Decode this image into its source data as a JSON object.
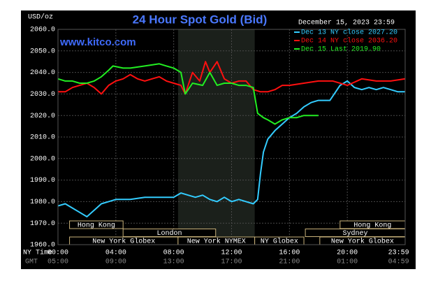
{
  "chart_data": {
    "type": "line",
    "title": "24 Hour Spot Gold (Bid)",
    "unit_label": "USD/oz",
    "timestamp": "December 15, 2023 23:59",
    "website": "www.kitco.com",
    "x_label": "NY Time",
    "x2_label": "GMT",
    "xlim": [
      0,
      24
    ],
    "ylim": [
      1960,
      2060
    ],
    "xticks": [
      {
        "value": 0,
        "label": "00:00"
      },
      {
        "value": 4,
        "label": "04:00"
      },
      {
        "value": 8,
        "label": "08:00"
      },
      {
        "value": 12,
        "label": "12:00"
      },
      {
        "value": 16,
        "label": "16:00"
      },
      {
        "value": 20,
        "label": "20:00"
      },
      {
        "value": 23.98,
        "label": "23:59"
      }
    ],
    "gmt_ticks": [
      "05:00",
      "09:00",
      "13:00",
      "17:00",
      "21:00",
      "01:00",
      "04:59"
    ],
    "yticks": [
      {
        "value": 1960,
        "label": "1960.0"
      },
      {
        "value": 1970,
        "label": "1970.0"
      },
      {
        "value": 1980,
        "label": "1980.0"
      },
      {
        "value": 1990,
        "label": "1990.0"
      },
      {
        "value": 2000,
        "label": "2000.0"
      },
      {
        "value": 2010,
        "label": "2010.0"
      },
      {
        "value": 2020,
        "label": "2020.0"
      },
      {
        "value": 2030,
        "label": "2030.0"
      },
      {
        "value": 2040,
        "label": "2040.0"
      },
      {
        "value": 2050,
        "label": "2050.0"
      },
      {
        "value": 2060,
        "label": "2060.0"
      }
    ],
    "grid": true,
    "shaded_range": [
      8.3,
      13.6
    ],
    "sessions": [
      [
        {
          "label": "Hong Kong",
          "start": 0.8,
          "end": 4.5
        },
        {
          "label": "Hong Kong",
          "start": 19.5,
          "end": 24
        }
      ],
      [
        {
          "label": "London",
          "start": 4.5,
          "end": 10.9
        },
        {
          "label": "Sydney",
          "start": 17.1,
          "end": 24
        }
      ],
      [
        {
          "label": "New York Globex",
          "start": 0.8,
          "end": 8.3
        },
        {
          "label": "New York NYMEX",
          "start": 8.3,
          "end": 13.6
        },
        {
          "label": "NY Globex",
          "start": 13.6,
          "end": 17.0
        },
        {
          "label": "New York Globex",
          "start": 18.1,
          "end": 24
        }
      ]
    ],
    "series": [
      {
        "name": "Dec 13 NY close 2027.20",
        "color": "#33ccff",
        "x": [
          0,
          0.5,
          1,
          1.5,
          2,
          2.5,
          3,
          3.5,
          4,
          5,
          6,
          7,
          8,
          8.5,
          9,
          9.5,
          10,
          10.5,
          11,
          11.5,
          12,
          12.5,
          13,
          13.5,
          13.8,
          14,
          14.2,
          14.5,
          15,
          15.5,
          16,
          16.5,
          17,
          17.5,
          18,
          18.5,
          18.8,
          19.2,
          19.5,
          20,
          20.5,
          21,
          21.5,
          22,
          22.5,
          23,
          23.5,
          24
        ],
        "values": [
          1978,
          1979,
          1977,
          1975,
          1973,
          1976,
          1979,
          1980,
          1981,
          1981,
          1982,
          1982,
          1982,
          1984,
          1983,
          1982,
          1983,
          1981,
          1980,
          1982,
          1980,
          1981,
          1980,
          1979,
          1981,
          1993,
          2003,
          2009,
          2013,
          2016,
          2019,
          2021,
          2024,
          2026,
          2027,
          2027,
          2027,
          2031,
          2034,
          2036,
          2033,
          2032,
          2033,
          2032,
          2033,
          2032,
          2031,
          2031
        ]
      },
      {
        "name": "Dec 14 NY close 2036.20",
        "color": "#ff1010",
        "x": [
          0,
          0.5,
          1,
          1.5,
          2,
          2.5,
          3,
          3.5,
          4,
          4.5,
          5,
          5.5,
          6,
          6.5,
          7,
          7.5,
          8,
          8.5,
          8.8,
          9.3,
          9.8,
          10.2,
          10.5,
          11,
          11.5,
          12,
          12.5,
          13,
          13.5,
          14,
          14.5,
          15,
          15.5,
          16,
          17,
          18,
          19,
          20,
          21,
          22,
          23,
          24
        ],
        "values": [
          2031,
          2031,
          2033,
          2034,
          2035,
          2033,
          2030,
          2034,
          2036,
          2037,
          2039,
          2037,
          2036,
          2037,
          2038,
          2036,
          2035,
          2034,
          2030,
          2040,
          2036,
          2045,
          2040,
          2045,
          2037,
          2035,
          2036,
          2036,
          2032,
          2031,
          2031,
          2032,
          2034,
          2034,
          2035,
          2036,
          2036,
          2034,
          2037,
          2036,
          2036,
          2037
        ]
      },
      {
        "name": "Dec 15 Last 2019.90",
        "color": "#22ee22",
        "x": [
          0,
          0.5,
          1,
          1.5,
          2,
          2.5,
          3,
          3.5,
          3.8,
          4.5,
          5,
          6,
          7,
          7.5,
          8,
          8.5,
          8.8,
          9.3,
          10,
          10.5,
          11,
          11.5,
          12,
          12.5,
          13,
          13.5,
          13.8,
          14.2,
          14.5,
          15,
          15.5,
          16,
          16.5,
          17,
          17.5,
          18
        ],
        "values": [
          2037,
          2036,
          2036,
          2035,
          2035,
          2036,
          2038,
          2041,
          2043,
          2042,
          2042,
          2043,
          2044,
          2043,
          2042,
          2040,
          2030,
          2035,
          2034,
          2040,
          2034,
          2035,
          2035,
          2034,
          2034,
          2033,
          2021,
          2019,
          2018,
          2016,
          2018,
          2019,
          2019,
          2020,
          2020,
          2020
        ]
      }
    ]
  }
}
